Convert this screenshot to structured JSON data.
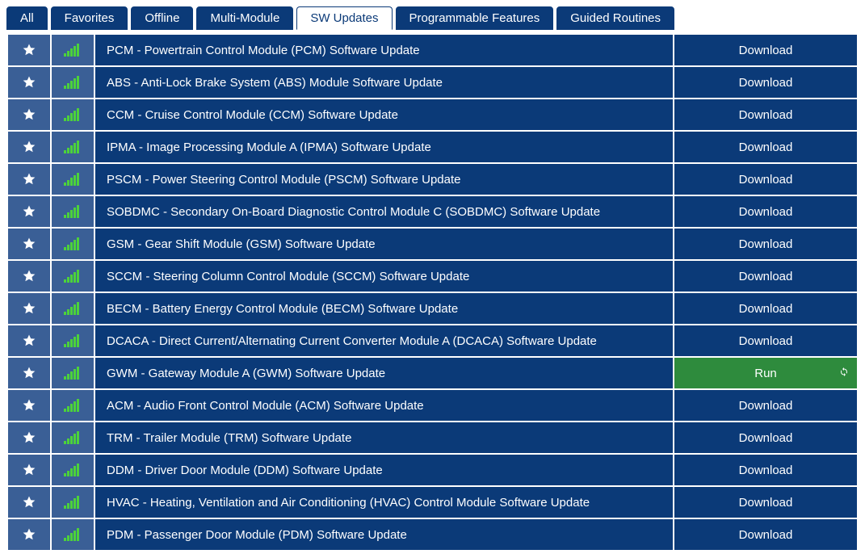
{
  "colors": {
    "tab_bg": "#0b3a78",
    "tab_active_bg": "#ffffff",
    "tab_active_fg": "#0b3a78",
    "row_bg": "#0b3a78",
    "icon_cell_bg": "#3a5f96",
    "run_bg": "#2e8b3d",
    "text": "#ffffff",
    "signal_color": "#4cd23a",
    "star_color": "#ffffff"
  },
  "tabs": [
    {
      "label": "All",
      "active": false
    },
    {
      "label": "Favorites",
      "active": false
    },
    {
      "label": "Offline",
      "active": false
    },
    {
      "label": "Multi-Module",
      "active": false
    },
    {
      "label": "SW Updates",
      "active": true
    },
    {
      "label": "Programmable Features",
      "active": false
    },
    {
      "label": "Guided Routines",
      "active": false
    }
  ],
  "action_labels": {
    "download": "Download",
    "run": "Run"
  },
  "rows": [
    {
      "name": "PCM - Powertrain Control Module (PCM) Software Update",
      "action": "download"
    },
    {
      "name": "ABS - Anti-Lock Brake System (ABS) Module Software Update",
      "action": "download"
    },
    {
      "name": "CCM - Cruise Control Module (CCM) Software Update",
      "action": "download"
    },
    {
      "name": "IPMA - Image Processing Module A (IPMA) Software Update",
      "action": "download"
    },
    {
      "name": "PSCM - Power Steering Control Module (PSCM) Software Update",
      "action": "download"
    },
    {
      "name": "SOBDMC - Secondary On-Board Diagnostic Control Module C (SOBDMC) Software Update",
      "action": "download"
    },
    {
      "name": "GSM - Gear Shift Module (GSM) Software Update",
      "action": "download"
    },
    {
      "name": "SCCM - Steering Column Control Module (SCCM) Software Update",
      "action": "download"
    },
    {
      "name": "BECM - Battery Energy Control Module (BECM) Software Update",
      "action": "download"
    },
    {
      "name": "DCACA - Direct Current/Alternating Current Converter Module A (DCACA) Software Update",
      "action": "download"
    },
    {
      "name": "GWM - Gateway Module A (GWM) Software Update",
      "action": "run"
    },
    {
      "name": "ACM - Audio Front Control Module (ACM) Software Update",
      "action": "download"
    },
    {
      "name": "TRM - Trailer Module (TRM) Software Update",
      "action": "download"
    },
    {
      "name": "DDM - Driver Door Module (DDM) Software Update",
      "action": "download"
    },
    {
      "name": "HVAC - Heating, Ventilation and Air Conditioning (HVAC) Control Module Software Update",
      "action": "download"
    },
    {
      "name": "PDM - Passenger Door Module (PDM) Software Update",
      "action": "download"
    }
  ]
}
